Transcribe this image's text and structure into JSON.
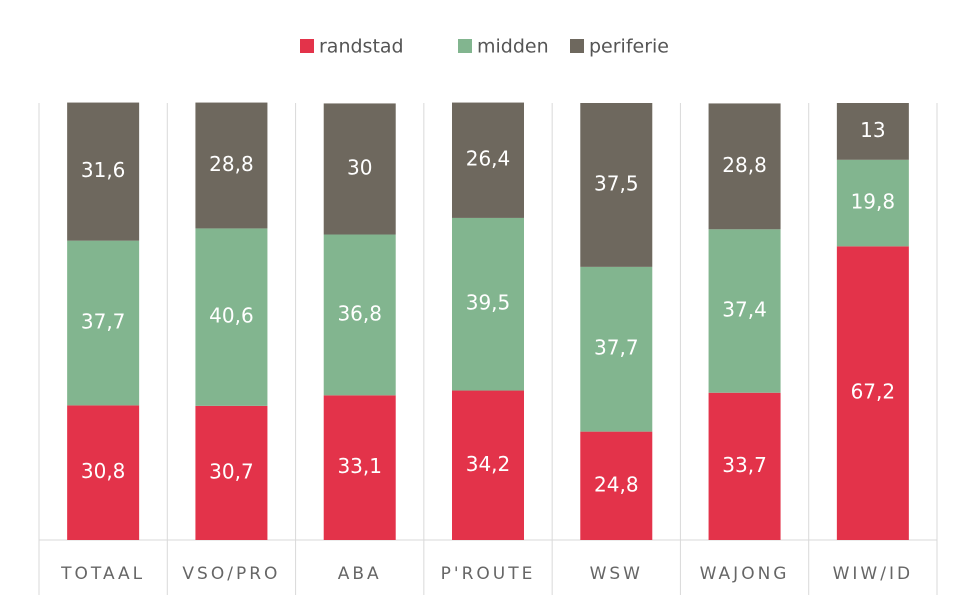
{
  "chart_data": {
    "type": "bar",
    "stacked": true,
    "categories": [
      "TOTAAL",
      "VSO/PRO",
      "ABA",
      "P'ROUTE",
      "WSW",
      "WAJONG",
      "WIW/ID"
    ],
    "series": [
      {
        "name": "randstad",
        "color": "#e3334a",
        "values": [
          30.8,
          30.7,
          33.1,
          34.2,
          24.8,
          33.7,
          67.2
        ],
        "value_labels": [
          "30,8",
          "30,7",
          "33,1",
          "34,2",
          "24,8",
          "33,7",
          "67,2"
        ]
      },
      {
        "name": "midden",
        "color": "#82b58f",
        "values": [
          37.7,
          40.6,
          36.8,
          39.5,
          37.7,
          37.4,
          19.8
        ],
        "value_labels": [
          "37,7",
          "40,6",
          "36,8",
          "39,5",
          "37,7",
          "37,4",
          "19,8"
        ]
      },
      {
        "name": "periferie",
        "color": "#6e685e",
        "values": [
          31.6,
          28.8,
          30,
          26.4,
          37.5,
          28.8,
          13
        ],
        "value_labels": [
          "31,6",
          "28,8",
          "30",
          "26,4",
          "37,5",
          "28,8",
          "13"
        ]
      }
    ],
    "ylim": [
      0,
      100
    ],
    "legend": "top"
  }
}
